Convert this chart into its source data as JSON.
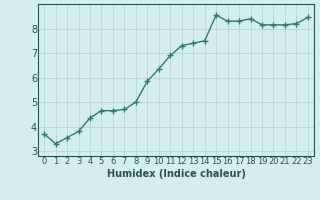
{
  "x": [
    0,
    1,
    2,
    3,
    4,
    5,
    6,
    7,
    8,
    9,
    10,
    11,
    12,
    13,
    14,
    15,
    16,
    17,
    18,
    19,
    20,
    21,
    22,
    23
  ],
  "y": [
    3.7,
    3.3,
    3.55,
    3.8,
    4.35,
    4.65,
    4.65,
    4.7,
    5.0,
    5.85,
    6.35,
    6.9,
    7.3,
    7.4,
    7.5,
    8.55,
    8.3,
    8.3,
    8.4,
    8.15,
    8.15,
    8.15,
    8.2,
    8.45
  ],
  "line_color": "#2d7d6e",
  "bg_color": "#d4eeee",
  "grid_color": "#b8d4d4",
  "xlabel": "Humidex (Indice chaleur)",
  "xlim": [
    -0.5,
    23.5
  ],
  "ylim": [
    2.8,
    9.0
  ],
  "yticks": [
    3,
    4,
    5,
    6,
    7,
    8
  ],
  "xticks": [
    0,
    1,
    2,
    3,
    4,
    5,
    6,
    7,
    8,
    9,
    10,
    11,
    12,
    13,
    14,
    15,
    16,
    17,
    18,
    19,
    20,
    21,
    22,
    23
  ],
  "marker": "+",
  "marker_size": 4.0,
  "line_width": 1.0,
  "font_size": 6,
  "xlabel_fontsize": 7,
  "label_color": "#2a5050",
  "tick_color": "#2a5050"
}
